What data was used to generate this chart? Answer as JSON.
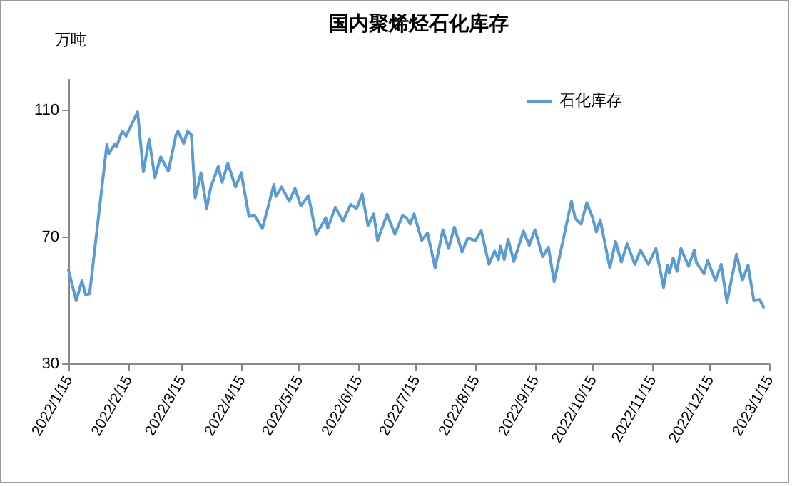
{
  "chart_data": {
    "type": "line",
    "title": "国内聚烯烃石化库存",
    "ylabel": "万吨",
    "x": [
      "2022-01-15",
      "2022-01-19",
      "2022-01-22",
      "2022-01-24",
      "2022-01-26",
      "2022-02-04",
      "2022-02-05",
      "2022-02-08",
      "2022-02-09",
      "2022-02-12",
      "2022-02-14",
      "2022-02-20",
      "2022-02-23",
      "2022-02-26",
      "2022-03-01",
      "2022-03-04",
      "2022-03-08",
      "2022-03-12",
      "2022-03-13",
      "2022-03-16",
      "2022-03-18",
      "2022-03-20",
      "2022-03-22",
      "2022-03-25",
      "2022-03-28",
      "2022-03-30",
      "2022-04-03",
      "2022-04-05",
      "2022-04-08",
      "2022-04-12",
      "2022-04-15",
      "2022-04-19",
      "2022-04-22",
      "2022-04-26",
      "2022-05-02",
      "2022-05-03",
      "2022-05-06",
      "2022-05-10",
      "2022-05-13",
      "2022-05-16",
      "2022-05-20",
      "2022-05-24",
      "2022-05-27",
      "2022-05-29",
      "2022-05-30",
      "2022-06-03",
      "2022-06-07",
      "2022-06-11",
      "2022-06-14",
      "2022-06-17",
      "2022-06-20",
      "2022-06-23",
      "2022-06-25",
      "2022-06-30",
      "2022-07-04",
      "2022-07-08",
      "2022-07-10",
      "2022-07-12",
      "2022-07-14",
      "2022-07-18",
      "2022-07-21",
      "2022-07-25",
      "2022-07-29",
      "2022-08-01",
      "2022-08-04",
      "2022-08-08",
      "2022-08-11",
      "2022-08-15",
      "2022-08-18",
      "2022-08-22",
      "2022-08-25",
      "2022-08-27",
      "2022-08-28",
      "2022-08-30",
      "2022-09-01",
      "2022-09-04",
      "2022-09-09",
      "2022-09-12",
      "2022-09-15",
      "2022-09-19",
      "2022-09-22",
      "2022-09-25",
      "2022-10-04",
      "2022-10-06",
      "2022-10-09",
      "2022-10-12",
      "2022-10-15",
      "2022-10-17",
      "2022-10-19",
      "2022-10-24",
      "2022-10-27",
      "2022-10-30",
      "2022-11-02",
      "2022-11-06",
      "2022-11-09",
      "2022-11-13",
      "2022-11-17",
      "2022-11-21",
      "2022-11-23",
      "2022-11-24",
      "2022-11-26",
      "2022-11-28",
      "2022-11-30",
      "2022-12-04",
      "2022-12-07",
      "2022-12-08",
      "2022-12-12",
      "2022-12-14",
      "2022-12-18",
      "2022-12-21",
      "2022-12-24",
      "2022-12-29",
      "2023-01-01",
      "2023-01-04",
      "2023-01-07",
      "2023-01-10",
      "2023-01-12"
    ],
    "series": [
      {
        "name": "石化库存",
        "color": "#5b9bd5",
        "values": [
          59.5,
          49.8,
          56.1,
          51.6,
          52,
          99.2,
          96.2,
          99.2,
          98.5,
          103.4,
          101.8,
          109.4,
          90.5,
          100.7,
          88.7,
          95.2,
          90.7,
          102.2,
          103.3,
          99.5,
          103.3,
          102.2,
          82.3,
          90.2,
          79,
          85.4,
          92.2,
          87.2,
          93.2,
          85.7,
          90.2,
          76.4,
          76.7,
          72.6,
          86.5,
          82.7,
          85.7,
          81.2,
          85.3,
          79.8,
          83,
          70.8,
          73.7,
          76,
          72.6,
          79.3,
          74.9,
          80.2,
          78.9,
          83.5,
          73.5,
          77.2,
          68.8,
          77.1,
          70.8,
          76.7,
          76,
          74,
          77.2,
          68.8,
          71.2,
          60.2,
          72.2,
          66.3,
          73,
          65.2,
          69.6,
          68.8,
          71.9,
          61.3,
          65.5,
          62.8,
          67,
          62.8,
          69.2,
          62.2,
          71.8,
          67.3,
          72.2,
          63.7,
          66.7,
          55.8,
          81.2,
          75.7,
          74,
          80.8,
          76,
          71.5,
          75.3,
          60.2,
          68.5,
          62,
          67.8,
          61.3,
          65.8,
          61.3,
          66.3,
          54,
          61,
          58.5,
          63.3,
          59.1,
          66.3,
          60.7,
          65.8,
          62,
          58.3,
          62.5,
          56.1,
          61.3,
          49.3,
          64.5,
          56.2,
          61,
          49.8,
          50.2,
          47.8
        ]
      }
    ],
    "xlim": [
      "2022-01-15",
      "2023-01-15"
    ],
    "xticks": [
      {
        "value": "2022-01-15",
        "label": "2022/1/15"
      },
      {
        "value": "2022-02-15",
        "label": "2022/2/15"
      },
      {
        "value": "2022-03-15",
        "label": "2022/3/15"
      },
      {
        "value": "2022-04-15",
        "label": "2022/4/15"
      },
      {
        "value": "2022-05-15",
        "label": "2022/5/15"
      },
      {
        "value": "2022-06-15",
        "label": "2022/6/15"
      },
      {
        "value": "2022-07-15",
        "label": "2022/7/15"
      },
      {
        "value": "2022-08-15",
        "label": "2022/8/15"
      },
      {
        "value": "2022-09-15",
        "label": "2022/9/15"
      },
      {
        "value": "2022-10-15",
        "label": "2022/10/15"
      },
      {
        "value": "2022-11-15",
        "label": "2022/11/15"
      },
      {
        "value": "2022-12-15",
        "label": "2022/12/15"
      },
      {
        "value": "2023-01-15",
        "label": "2023/1/15"
      }
    ],
    "ylim": [
      30,
      120
    ],
    "yticks": [
      30,
      70,
      110
    ],
    "grid": false,
    "legend": "top right",
    "marker": "none",
    "line_style": "solid"
  }
}
